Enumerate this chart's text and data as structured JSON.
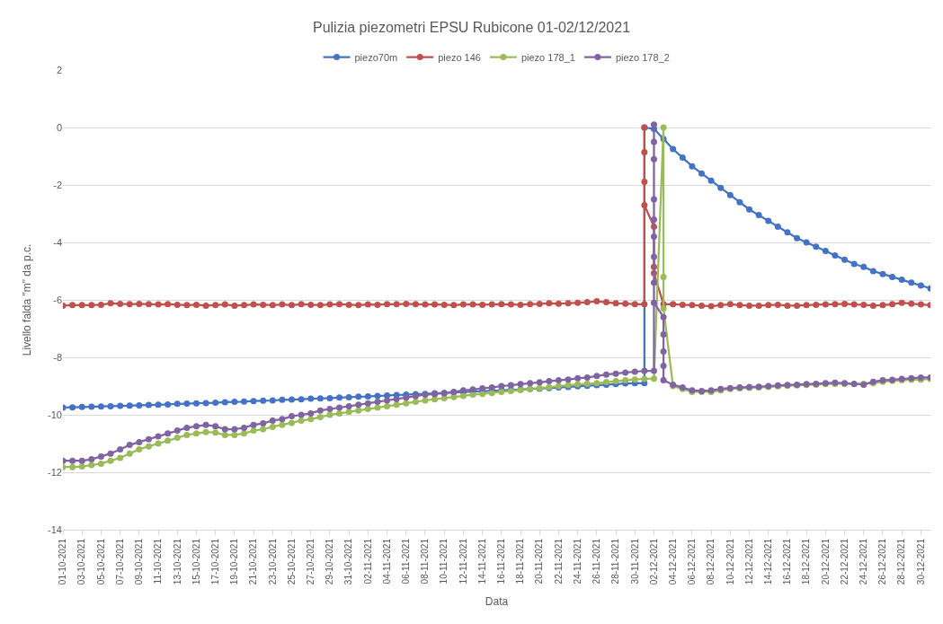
{
  "chart_data": {
    "type": "line",
    "title": "Pulizia piezometri EPSU Rubicone 01-02/12/2021",
    "xlabel": "Data",
    "ylabel": "Livello falda \"m\" da p.c.",
    "legend": "top",
    "grid": "y",
    "marker": "circle",
    "line_style": "solid",
    "xlim": [
      "2021-10-01",
      "2021-12-31"
    ],
    "xticks": [
      {
        "value": "2021-10-01",
        "label": "01-10-2021"
      },
      {
        "value": "2021-10-03",
        "label": "03-10-2021"
      },
      {
        "value": "2021-10-05",
        "label": "05-10-2021"
      },
      {
        "value": "2021-10-07",
        "label": "07-10-2021"
      },
      {
        "value": "2021-10-09",
        "label": "09-10-2021"
      },
      {
        "value": "2021-10-11",
        "label": "11-10-2021"
      },
      {
        "value": "2021-10-13",
        "label": "13-10-2021"
      },
      {
        "value": "2021-10-15",
        "label": "15-10-2021"
      },
      {
        "value": "2021-10-17",
        "label": "17-10-2021"
      },
      {
        "value": "2021-10-19",
        "label": "19-10-2021"
      },
      {
        "value": "2021-10-21",
        "label": "21-10-2021"
      },
      {
        "value": "2021-10-23",
        "label": "23-10-2021"
      },
      {
        "value": "2021-10-25",
        "label": "25-10-2021"
      },
      {
        "value": "2021-10-27",
        "label": "27-10-2021"
      },
      {
        "value": "2021-10-29",
        "label": "29-10-2021"
      },
      {
        "value": "2021-10-31",
        "label": "31-10-2021"
      },
      {
        "value": "2021-11-02",
        "label": "02-11-2021"
      },
      {
        "value": "2021-11-04",
        "label": "04-11-2021"
      },
      {
        "value": "2021-11-06",
        "label": "06-11-2021"
      },
      {
        "value": "2021-11-08",
        "label": "08-11-2021"
      },
      {
        "value": "2021-11-10",
        "label": "10-11-2021"
      },
      {
        "value": "2021-11-12",
        "label": "12-11-2021"
      },
      {
        "value": "2021-11-14",
        "label": "14-11-2021"
      },
      {
        "value": "2021-11-16",
        "label": "16-11-2021"
      },
      {
        "value": "2021-11-18",
        "label": "18-11-2021"
      },
      {
        "value": "2021-11-20",
        "label": "20-11-2021"
      },
      {
        "value": "2021-11-22",
        "label": "22-11-2021"
      },
      {
        "value": "2021-11-24",
        "label": "24-11-2021"
      },
      {
        "value": "2021-11-26",
        "label": "26-11-2021"
      },
      {
        "value": "2021-11-28",
        "label": "28-11-2021"
      },
      {
        "value": "2021-11-30",
        "label": "30-11-2021"
      },
      {
        "value": "2021-12-02",
        "label": "02-12-2021"
      },
      {
        "value": "2021-12-04",
        "label": "04-12-2021"
      },
      {
        "value": "2021-12-06",
        "label": "06-12-2021"
      },
      {
        "value": "2021-12-08",
        "label": "08-12-2021"
      },
      {
        "value": "2021-12-10",
        "label": "10-12-2021"
      },
      {
        "value": "2021-12-12",
        "label": "12-12-2021"
      },
      {
        "value": "2021-12-14",
        "label": "14-12-2021"
      },
      {
        "value": "2021-12-16",
        "label": "16-12-2021"
      },
      {
        "value": "2021-12-18",
        "label": "18-12-2021"
      },
      {
        "value": "2021-12-20",
        "label": "20-12-2021"
      },
      {
        "value": "2021-12-22",
        "label": "22-12-2021"
      },
      {
        "value": "2021-12-24",
        "label": "24-12-2021"
      },
      {
        "value": "2021-12-26",
        "label": "26-12-2021"
      },
      {
        "value": "2021-12-28",
        "label": "28-12-2021"
      },
      {
        "value": "2021-12-30",
        "label": "30-12-2021"
      }
    ],
    "ylim": [
      -14,
      2
    ],
    "yticks": [
      -14,
      -12,
      -10,
      -8,
      -6,
      -4,
      -2,
      0,
      2
    ],
    "series": [
      {
        "name": "piezo70m",
        "color": "#4472c4",
        "x": [
          "2021-10-01",
          "2021-10-02",
          "2021-10-03",
          "2021-10-04",
          "2021-10-05",
          "2021-10-06",
          "2021-10-07",
          "2021-10-08",
          "2021-10-09",
          "2021-10-10",
          "2021-10-11",
          "2021-10-12",
          "2021-10-13",
          "2021-10-14",
          "2021-10-15",
          "2021-10-16",
          "2021-10-17",
          "2021-10-18",
          "2021-10-19",
          "2021-10-20",
          "2021-10-21",
          "2021-10-22",
          "2021-10-23",
          "2021-10-24",
          "2021-10-25",
          "2021-10-26",
          "2021-10-27",
          "2021-10-28",
          "2021-10-29",
          "2021-10-30",
          "2021-10-31",
          "2021-11-01",
          "2021-11-02",
          "2021-11-03",
          "2021-11-04",
          "2021-11-05",
          "2021-11-06",
          "2021-11-07",
          "2021-11-08",
          "2021-11-09",
          "2021-11-10",
          "2021-11-11",
          "2021-11-12",
          "2021-11-13",
          "2021-11-14",
          "2021-11-15",
          "2021-11-16",
          "2021-11-17",
          "2021-11-18",
          "2021-11-19",
          "2021-11-20",
          "2021-11-21",
          "2021-11-22",
          "2021-11-23",
          "2021-11-24",
          "2021-11-25",
          "2021-11-26",
          "2021-11-27",
          "2021-11-28",
          "2021-11-29",
          "2021-11-30",
          "2021-12-01",
          "2021-12-01",
          "2021-12-02",
          "2021-12-03",
          "2021-12-04",
          "2021-12-05",
          "2021-12-06",
          "2021-12-07",
          "2021-12-08",
          "2021-12-09",
          "2021-12-10",
          "2021-12-11",
          "2021-12-12",
          "2021-12-13",
          "2021-12-14",
          "2021-12-15",
          "2021-12-16",
          "2021-12-17",
          "2021-12-18",
          "2021-12-19",
          "2021-12-20",
          "2021-12-21",
          "2021-12-22",
          "2021-12-23",
          "2021-12-24",
          "2021-12-25",
          "2021-12-26",
          "2021-12-27",
          "2021-12-28",
          "2021-12-29",
          "2021-12-30",
          "2021-12-31"
        ],
        "values": [
          -9.75,
          -9.74,
          -9.73,
          -9.72,
          -9.71,
          -9.7,
          -9.69,
          -9.68,
          -9.67,
          -9.66,
          -9.65,
          -9.64,
          -9.62,
          -9.61,
          -9.6,
          -9.59,
          -9.58,
          -9.56,
          -9.55,
          -9.54,
          -9.52,
          -9.51,
          -9.5,
          -9.48,
          -9.47,
          -9.46,
          -9.44,
          -9.43,
          -9.42,
          -9.4,
          -9.39,
          -9.37,
          -9.36,
          -9.34,
          -9.33,
          -9.31,
          -9.3,
          -9.28,
          -9.27,
          -9.25,
          -9.24,
          -9.22,
          -9.21,
          -9.19,
          -9.18,
          -9.16,
          -9.15,
          -9.13,
          -9.12,
          -9.1,
          -9.09,
          -9.07,
          -9.05,
          -9.03,
          -9.01,
          -8.99,
          -8.97,
          -8.95,
          -8.93,
          -8.91,
          -8.9,
          -8.9,
          0.0,
          -0.05,
          -0.4,
          -0.75,
          -1.05,
          -1.35,
          -1.6,
          -1.85,
          -2.1,
          -2.35,
          -2.6,
          -2.85,
          -3.05,
          -3.25,
          -3.45,
          -3.65,
          -3.85,
          -4.0,
          -4.15,
          -4.3,
          -4.45,
          -4.6,
          -4.75,
          -4.85,
          -5.0,
          -5.1,
          -5.2,
          -5.3,
          -5.4,
          -5.5,
          -5.6
        ]
      },
      {
        "name": "piezo 146",
        "color": "#c0504d",
        "x": [
          "2021-10-01",
          "2021-10-02",
          "2021-10-03",
          "2021-10-04",
          "2021-10-05",
          "2021-10-06",
          "2021-10-07",
          "2021-10-08",
          "2021-10-09",
          "2021-10-10",
          "2021-10-11",
          "2021-10-12",
          "2021-10-13",
          "2021-10-14",
          "2021-10-15",
          "2021-10-16",
          "2021-10-17",
          "2021-10-18",
          "2021-10-19",
          "2021-10-20",
          "2021-10-21",
          "2021-10-22",
          "2021-10-23",
          "2021-10-24",
          "2021-10-25",
          "2021-10-26",
          "2021-10-27",
          "2021-10-28",
          "2021-10-29",
          "2021-10-30",
          "2021-10-31",
          "2021-11-01",
          "2021-11-02",
          "2021-11-03",
          "2021-11-04",
          "2021-11-05",
          "2021-11-06",
          "2021-11-07",
          "2021-11-08",
          "2021-11-09",
          "2021-11-10",
          "2021-11-11",
          "2021-11-12",
          "2021-11-13",
          "2021-11-14",
          "2021-11-15",
          "2021-11-16",
          "2021-11-17",
          "2021-11-18",
          "2021-11-19",
          "2021-11-20",
          "2021-11-21",
          "2021-11-22",
          "2021-11-23",
          "2021-11-24",
          "2021-11-25",
          "2021-11-26",
          "2021-11-27",
          "2021-11-28",
          "2021-11-29",
          "2021-11-30",
          "2021-12-01",
          "2021-12-01",
          "2021-12-01",
          "2021-12-01",
          "2021-12-01",
          "2021-12-02",
          "2021-12-02",
          "2021-12-02",
          "2021-12-03",
          "2021-12-04",
          "2021-12-05",
          "2021-12-06",
          "2021-12-07",
          "2021-12-08",
          "2021-12-09",
          "2021-12-10",
          "2021-12-11",
          "2021-12-12",
          "2021-12-13",
          "2021-12-14",
          "2021-12-15",
          "2021-12-16",
          "2021-12-17",
          "2021-12-18",
          "2021-12-19",
          "2021-12-20",
          "2021-12-21",
          "2021-12-22",
          "2021-12-23",
          "2021-12-24",
          "2021-12-25",
          "2021-12-26",
          "2021-12-27",
          "2021-12-28",
          "2021-12-29",
          "2021-12-30",
          "2021-12-31"
        ],
        "values": [
          -6.2,
          -6.18,
          -6.18,
          -6.18,
          -6.17,
          -6.12,
          -6.14,
          -6.15,
          -6.14,
          -6.15,
          -6.16,
          -6.15,
          -6.17,
          -6.18,
          -6.17,
          -6.2,
          -6.18,
          -6.16,
          -6.2,
          -6.18,
          -6.16,
          -6.17,
          -6.18,
          -6.16,
          -6.18,
          -6.15,
          -6.17,
          -6.18,
          -6.16,
          -6.15,
          -6.17,
          -6.18,
          -6.16,
          -6.17,
          -6.15,
          -6.15,
          -6.14,
          -6.15,
          -6.16,
          -6.16,
          -6.17,
          -6.18,
          -6.16,
          -6.16,
          -6.17,
          -6.16,
          -6.15,
          -6.16,
          -6.17,
          -6.15,
          -6.14,
          -6.12,
          -6.13,
          -6.12,
          -6.1,
          -6.08,
          -6.05,
          -6.08,
          -6.12,
          -6.13,
          -6.15,
          -6.15,
          0.0,
          -0.86,
          -1.89,
          -2.7,
          -3.45,
          -4.85,
          -5.07,
          -6.15,
          -6.15,
          -6.17,
          -6.18,
          -6.2,
          -6.22,
          -6.18,
          -6.15,
          -6.18,
          -6.2,
          -6.2,
          -6.18,
          -6.17,
          -6.2,
          -6.2,
          -6.18,
          -6.17,
          -6.16,
          -6.15,
          -6.14,
          -6.16,
          -6.17,
          -6.2,
          -6.18,
          -6.15,
          -6.1,
          -6.13,
          -6.16,
          -6.18
        ]
      },
      {
        "name": "piezo 178_1",
        "color": "#9bbb59",
        "x": [
          "2021-10-01",
          "2021-10-02",
          "2021-10-03",
          "2021-10-04",
          "2021-10-05",
          "2021-10-06",
          "2021-10-07",
          "2021-10-08",
          "2021-10-09",
          "2021-10-10",
          "2021-10-11",
          "2021-10-12",
          "2021-10-13",
          "2021-10-14",
          "2021-10-15",
          "2021-10-16",
          "2021-10-17",
          "2021-10-18",
          "2021-10-19",
          "2021-10-20",
          "2021-10-21",
          "2021-10-22",
          "2021-10-23",
          "2021-10-24",
          "2021-10-25",
          "2021-10-26",
          "2021-10-27",
          "2021-10-28",
          "2021-10-29",
          "2021-10-30",
          "2021-10-31",
          "2021-11-01",
          "2021-11-02",
          "2021-11-03",
          "2021-11-04",
          "2021-11-05",
          "2021-11-06",
          "2021-11-07",
          "2021-11-08",
          "2021-11-09",
          "2021-11-10",
          "2021-11-11",
          "2021-11-12",
          "2021-11-13",
          "2021-11-14",
          "2021-11-15",
          "2021-11-16",
          "2021-11-17",
          "2021-11-18",
          "2021-11-19",
          "2021-11-20",
          "2021-11-21",
          "2021-11-22",
          "2021-11-23",
          "2021-11-24",
          "2021-11-25",
          "2021-11-26",
          "2021-11-27",
          "2021-11-28",
          "2021-11-29",
          "2021-11-30",
          "2021-12-01",
          "2021-12-02",
          "2021-12-03",
          "2021-12-03",
          "2021-12-03",
          "2021-12-04",
          "2021-12-05",
          "2021-12-06",
          "2021-12-07",
          "2021-12-08",
          "2021-12-09",
          "2021-12-10",
          "2021-12-11",
          "2021-12-12",
          "2021-12-13",
          "2021-12-14",
          "2021-12-15",
          "2021-12-16",
          "2021-12-17",
          "2021-12-18",
          "2021-12-19",
          "2021-12-20",
          "2021-12-21",
          "2021-12-22",
          "2021-12-23",
          "2021-12-24",
          "2021-12-25",
          "2021-12-26",
          "2021-12-27",
          "2021-12-28",
          "2021-12-29",
          "2021-12-30",
          "2021-12-31"
        ],
        "values": [
          -11.82,
          -11.82,
          -11.8,
          -11.75,
          -11.7,
          -11.6,
          -11.5,
          -11.35,
          -11.2,
          -11.1,
          -11.0,
          -10.9,
          -10.8,
          -10.7,
          -10.65,
          -10.6,
          -10.62,
          -10.7,
          -10.7,
          -10.65,
          -10.55,
          -10.5,
          -10.42,
          -10.35,
          -10.28,
          -10.2,
          -10.15,
          -10.08,
          -10.0,
          -9.95,
          -9.9,
          -9.85,
          -9.8,
          -9.75,
          -9.7,
          -9.65,
          -9.6,
          -9.55,
          -9.5,
          -9.46,
          -9.42,
          -9.38,
          -9.34,
          -9.3,
          -9.27,
          -9.24,
          -9.2,
          -9.17,
          -9.14,
          -9.1,
          -9.07,
          -9.04,
          -9.0,
          -8.97,
          -8.94,
          -8.92,
          -8.9,
          -8.86,
          -8.83,
          -8.8,
          -8.77,
          -8.75,
          -8.74,
          0.0,
          -5.2,
          -6.3,
          -9.0,
          -9.1,
          -9.2,
          -9.2,
          -9.2,
          -9.15,
          -9.1,
          -9.08,
          -9.06,
          -9.05,
          -9.03,
          -9.01,
          -8.99,
          -8.98,
          -8.96,
          -8.95,
          -8.93,
          -8.92,
          -8.92,
          -8.93,
          -8.92,
          -8.9,
          -8.85,
          -8.82,
          -8.8,
          -8.78,
          -8.77,
          -8.75
        ]
      },
      {
        "name": "piezo 178_2",
        "color": "#8064a2",
        "x": [
          "2021-10-01",
          "2021-10-02",
          "2021-10-03",
          "2021-10-04",
          "2021-10-05",
          "2021-10-06",
          "2021-10-07",
          "2021-10-08",
          "2021-10-09",
          "2021-10-10",
          "2021-10-11",
          "2021-10-12",
          "2021-10-13",
          "2021-10-14",
          "2021-10-15",
          "2021-10-16",
          "2021-10-17",
          "2021-10-18",
          "2021-10-19",
          "2021-10-20",
          "2021-10-21",
          "2021-10-22",
          "2021-10-23",
          "2021-10-24",
          "2021-10-25",
          "2021-10-26",
          "2021-10-27",
          "2021-10-28",
          "2021-10-29",
          "2021-10-30",
          "2021-10-31",
          "2021-11-01",
          "2021-11-02",
          "2021-11-03",
          "2021-11-04",
          "2021-11-05",
          "2021-11-06",
          "2021-11-07",
          "2021-11-08",
          "2021-11-09",
          "2021-11-10",
          "2021-11-11",
          "2021-11-12",
          "2021-11-13",
          "2021-11-14",
          "2021-11-15",
          "2021-11-16",
          "2021-11-17",
          "2021-11-18",
          "2021-11-19",
          "2021-11-20",
          "2021-11-21",
          "2021-11-22",
          "2021-11-23",
          "2021-11-24",
          "2021-11-25",
          "2021-11-26",
          "2021-11-27",
          "2021-11-28",
          "2021-11-29",
          "2021-11-30",
          "2021-12-01",
          "2021-12-02",
          "2021-12-02",
          "2021-12-02",
          "2021-12-02",
          "2021-12-02",
          "2021-12-02",
          "2021-12-02",
          "2021-12-02",
          "2021-12-02",
          "2021-12-02",
          "2021-12-03",
          "2021-12-03",
          "2021-12-03",
          "2021-12-03",
          "2021-12-03",
          "2021-12-04",
          "2021-12-05",
          "2021-12-06",
          "2021-12-07",
          "2021-12-08",
          "2021-12-09",
          "2021-12-10",
          "2021-12-11",
          "2021-12-12",
          "2021-12-13",
          "2021-12-14",
          "2021-12-15",
          "2021-12-16",
          "2021-12-17",
          "2021-12-18",
          "2021-12-19",
          "2021-12-20",
          "2021-12-21",
          "2021-12-22",
          "2021-12-23",
          "2021-12-24",
          "2021-12-25",
          "2021-12-26",
          "2021-12-27",
          "2021-12-28",
          "2021-12-29",
          "2021-12-30",
          "2021-12-31"
        ],
        "values": [
          -11.6,
          -11.6,
          -11.6,
          -11.55,
          -11.45,
          -11.35,
          -11.2,
          -11.05,
          -10.95,
          -10.85,
          -10.75,
          -10.65,
          -10.55,
          -10.45,
          -10.4,
          -10.35,
          -10.4,
          -10.5,
          -10.5,
          -10.45,
          -10.35,
          -10.3,
          -10.2,
          -10.15,
          -10.05,
          -10.0,
          -9.95,
          -9.85,
          -9.8,
          -9.75,
          -9.7,
          -9.65,
          -9.6,
          -9.55,
          -9.5,
          -9.45,
          -9.4,
          -9.35,
          -9.3,
          -9.28,
          -9.25,
          -9.2,
          -9.15,
          -9.12,
          -9.08,
          -9.05,
          -9.0,
          -8.97,
          -8.93,
          -8.9,
          -8.87,
          -8.83,
          -8.8,
          -8.77,
          -8.73,
          -8.7,
          -8.65,
          -8.6,
          -8.57,
          -8.53,
          -8.5,
          -8.47,
          -8.47,
          0.1,
          -0.5,
          -1.1,
          -2.5,
          -3.2,
          -3.8,
          -4.5,
          -5.4,
          -6.1,
          -6.6,
          -7.2,
          -7.8,
          -8.3,
          -8.8,
          -8.95,
          -9.05,
          -9.15,
          -9.17,
          -9.15,
          -9.1,
          -9.07,
          -9.05,
          -9.03,
          -9.02,
          -9.0,
          -8.98,
          -8.96,
          -8.95,
          -8.93,
          -8.92,
          -8.9,
          -8.88,
          -8.9,
          -8.92,
          -8.95,
          -8.85,
          -8.8,
          -8.78,
          -8.75,
          -8.73,
          -8.7,
          -8.7
        ]
      }
    ]
  }
}
